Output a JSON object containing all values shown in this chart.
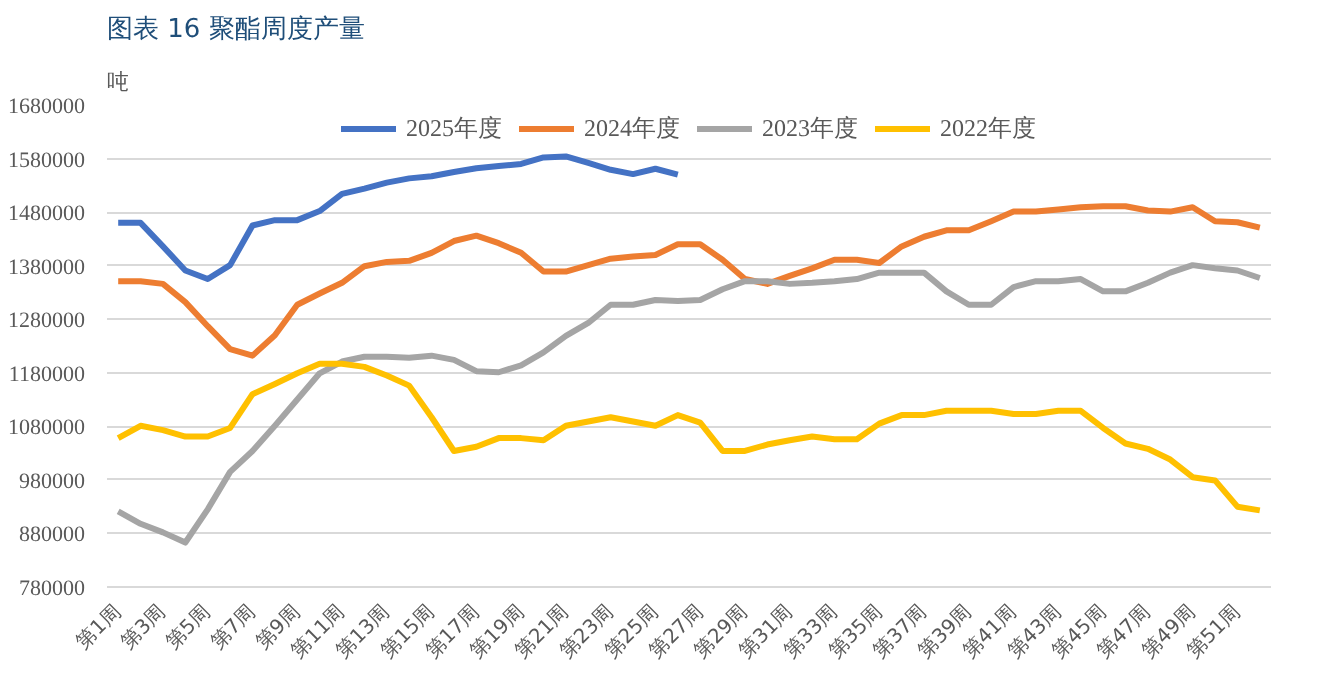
{
  "chart_data": {
    "type": "line",
    "title": "图表 16  聚酯周度产量",
    "ylabel": "吨",
    "categories": [
      "第1周",
      null,
      "第3周",
      null,
      "第5周",
      null,
      "第7周",
      null,
      "第9周",
      null,
      "第11周",
      null,
      "第13周",
      null,
      "第15周",
      null,
      "第17周",
      null,
      "第19周",
      null,
      "第21周",
      null,
      "第23周",
      null,
      "第25周",
      null,
      "第27周",
      null,
      "第29周",
      null,
      "第31周",
      null,
      "第33周",
      null,
      "第35周",
      null,
      "第37周",
      null,
      "第39周",
      null,
      "第41周",
      null,
      "第43周",
      null,
      "第45周",
      null,
      "第47周",
      null,
      "第49周",
      null,
      "第51周",
      null
    ],
    "series": [
      {
        "name": "2025年度",
        "color": "#4472c4",
        "values": [
          1460000,
          1460000,
          1416000,
          1371000,
          1355000,
          1381000,
          1455000,
          1465000,
          1465000,
          1482000,
          1514000,
          1524000,
          1535000,
          1543000,
          1547000,
          1555000,
          1562000,
          1566000,
          1570000,
          1582000,
          1584000,
          1572000,
          1559000,
          1551000,
          1561000,
          1550000,
          null,
          null,
          null,
          null,
          null,
          null,
          null,
          null,
          null,
          null,
          null,
          null,
          null,
          null,
          null,
          null,
          null,
          null,
          null,
          null,
          null,
          null,
          null,
          null,
          null,
          null
        ]
      },
      {
        "name": "2024年度",
        "color": "#ed7d31",
        "values": [
          1351000,
          1351000,
          1346000,
          1312000,
          1267000,
          1224000,
          1212000,
          1250000,
          1307000,
          1328000,
          1348000,
          1379000,
          1387000,
          1389000,
          1404000,
          1426000,
          1436000,
          1422000,
          1404000,
          1369000,
          1369000,
          1381000,
          1393000,
          1397000,
          1400000,
          1420000,
          1420000,
          1391000,
          1355000,
          1346000,
          1361000,
          1375000,
          1391000,
          1391000,
          1385000,
          1416000,
          1434000,
          1446000,
          1446000,
          1463000,
          1481000,
          1481000,
          1485000,
          1489000,
          1491000,
          1491000,
          1483000,
          1481000,
          1489000,
          1463000,
          1461000,
          1451000
        ]
      },
      {
        "name": "2023年度",
        "color": "#a5a5a5",
        "values": [
          921000,
          898000,
          882000,
          863000,
          925000,
          995000,
          1034000,
          1081000,
          1130000,
          1179000,
          1201000,
          1210000,
          1210000,
          1208000,
          1212000,
          1204000,
          1183000,
          1181000,
          1194000,
          1218000,
          1249000,
          1273000,
          1307000,
          1307000,
          1316000,
          1314000,
          1316000,
          1336000,
          1351000,
          1351000,
          1346000,
          1348000,
          1351000,
          1355000,
          1367000,
          1367000,
          1367000,
          1332000,
          1307000,
          1307000,
          1340000,
          1351000,
          1351000,
          1355000,
          1332000,
          1332000,
          1348000,
          1367000,
          1381000,
          1375000,
          1371000,
          1357000
        ]
      },
      {
        "name": "2022年度",
        "color": "#ffc000",
        "values": [
          1058000,
          1081000,
          1073000,
          1061000,
          1061000,
          1077000,
          1140000,
          1159000,
          1179000,
          1197000,
          1197000,
          1191000,
          1175000,
          1156000,
          1097000,
          1034000,
          1042000,
          1058000,
          1058000,
          1054000,
          1081000,
          1089000,
          1097000,
          1089000,
          1081000,
          1101000,
          1087000,
          1034000,
          1034000,
          1046000,
          1054000,
          1061000,
          1056000,
          1056000,
          1085000,
          1101000,
          1101000,
          1109000,
          1109000,
          1109000,
          1103000,
          1103000,
          1109000,
          1109000,
          1077000,
          1048000,
          1038000,
          1018000,
          985000,
          979000,
          930000,
          923000
        ]
      }
    ],
    "ylim": [
      780000,
      1680000
    ],
    "yticks": [
      780000,
      880000,
      980000,
      1080000,
      1180000,
      1280000,
      1380000,
      1480000,
      1580000,
      1680000
    ],
    "grid": "y",
    "legend": "top",
    "marker": "none",
    "line_style": "solid"
  }
}
